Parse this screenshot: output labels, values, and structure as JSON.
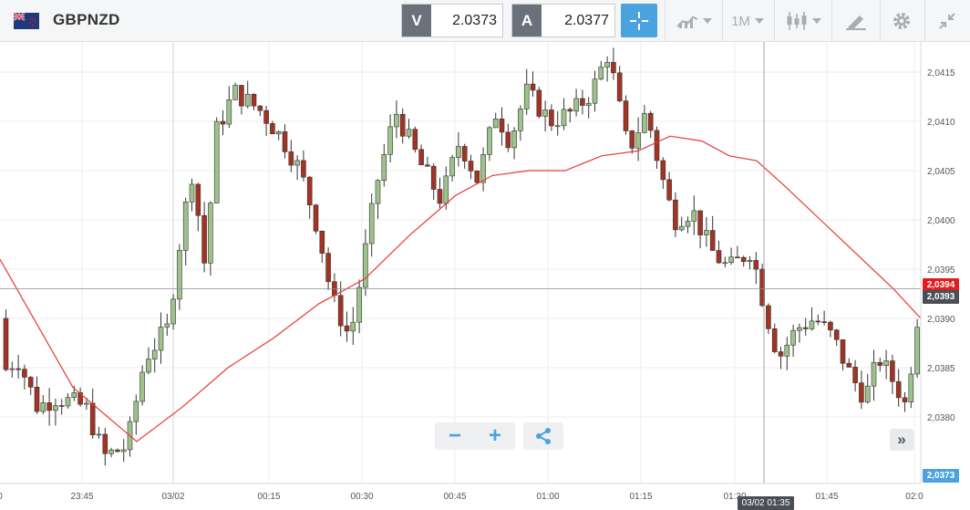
{
  "header": {
    "symbol": "GBPNZD",
    "sell": {
      "tag": "V",
      "value": "2.0373"
    },
    "buy": {
      "tag": "A",
      "value": "2.0377"
    },
    "timeframe": "1M",
    "icons": [
      "crosshair-icon",
      "chart-type-icon",
      "candlestick-icon",
      "drawing-tool-icon",
      "gear-icon",
      "collapse-icon"
    ]
  },
  "chart_data": {
    "type": "candlestick",
    "y_ticks": [
      "2,0415",
      "2,0410",
      "2,0405",
      "2,0400",
      "2,0395",
      "2,0390",
      "2,0385",
      "2,0380"
    ],
    "x_ticks": [
      "0",
      "23:45",
      "03/02",
      "00:15",
      "00:30",
      "00:45",
      "01:00",
      "01:15",
      "01:30",
      "01:45",
      "02:0"
    ],
    "ylim": [
      2.03765,
      2.04175
    ],
    "current_price_label": "2,0393",
    "ma_price_label": "2,0394",
    "last_price_label": "2,0373",
    "crosshair_time": "03/02 01:35",
    "crosshair_price": 2.0393,
    "colors": {
      "up": "#9dc38a",
      "down": "#a33323",
      "ma": "#e63a30",
      "accent": "#4aa3df"
    }
  },
  "controls": {
    "zoom_out": "−",
    "zoom_in": "+",
    "scroll_label": "»"
  }
}
